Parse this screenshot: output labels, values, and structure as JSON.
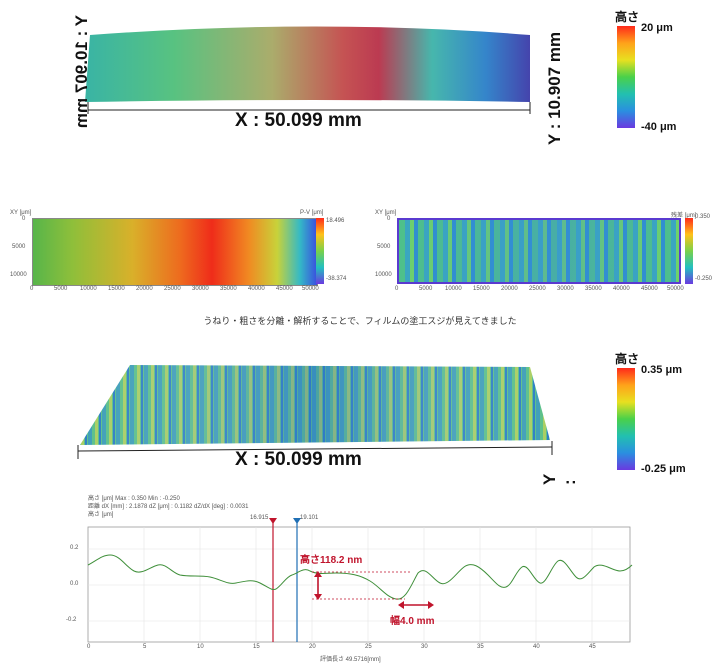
{
  "top3d": {
    "x_label": "X : 50.099 mm",
    "y_left_label": "Y : 10.907 mm",
    "y_right_label": "Y : 10.907 mm",
    "colorbar": {
      "title": "高さ",
      "max": "20 μm",
      "min": "-40 μm"
    }
  },
  "mid": {
    "left": {
      "corner_label": "XY [μm]",
      "scale_label": "P-V [μm]",
      "scale_max": "18.496",
      "scale_min": "-38.374",
      "y_ticks": [
        "0",
        "5000",
        "10000"
      ],
      "x_ticks": [
        "0",
        "5000",
        "10000",
        "15000",
        "20000",
        "25000",
        "30000",
        "35000",
        "40000",
        "45000",
        "50000"
      ]
    },
    "right": {
      "corner_label": "XY [μm]",
      "scale_label": "残差 [μm]",
      "scale_max": "0.350",
      "scale_min": "-0.250",
      "y_ticks": [
        "0",
        "5000",
        "10000"
      ],
      "x_ticks": [
        "0",
        "5000",
        "10000",
        "15000",
        "20000",
        "25000",
        "30000",
        "35000",
        "40000",
        "45000",
        "50000"
      ]
    },
    "caption": "うねり・粗さを分離・解析することで、フィルムの塗工スジが見えてきました"
  },
  "bottom3d": {
    "x_label": "X : 50.099 mm",
    "y_right_label": "Y :",
    "colorbar": {
      "title": "高さ",
      "max": "0.35 μm",
      "min": "-0.25 μm"
    }
  },
  "profile": {
    "header_line1": "高さ [μm]   Max : 0.350   Min : -0.250",
    "header_line2": "距離 dX [mm] : 2.1878   dZ [μm] : 0.1182   dZ/dX [deg] : 0.0031",
    "header_line3": "高さ [μm]",
    "marker_red_label": "16.915",
    "marker_blue_label": "19.101",
    "annotation_height": "高さ118.2 nm",
    "annotation_width": "幅4.0 mm",
    "y_ticks": [
      "0.2",
      "0.0",
      "-0.2"
    ],
    "x_ticks": [
      "0",
      "5",
      "10",
      "15",
      "20",
      "25",
      "30",
      "35",
      "40",
      "45"
    ],
    "x_axis_label": "評価長さ 49.5716[mm]"
  },
  "colors": {
    "red_marker": "#c0142c",
    "blue_marker": "#1f6fb4",
    "profile_line": "#3f8f3a"
  }
}
